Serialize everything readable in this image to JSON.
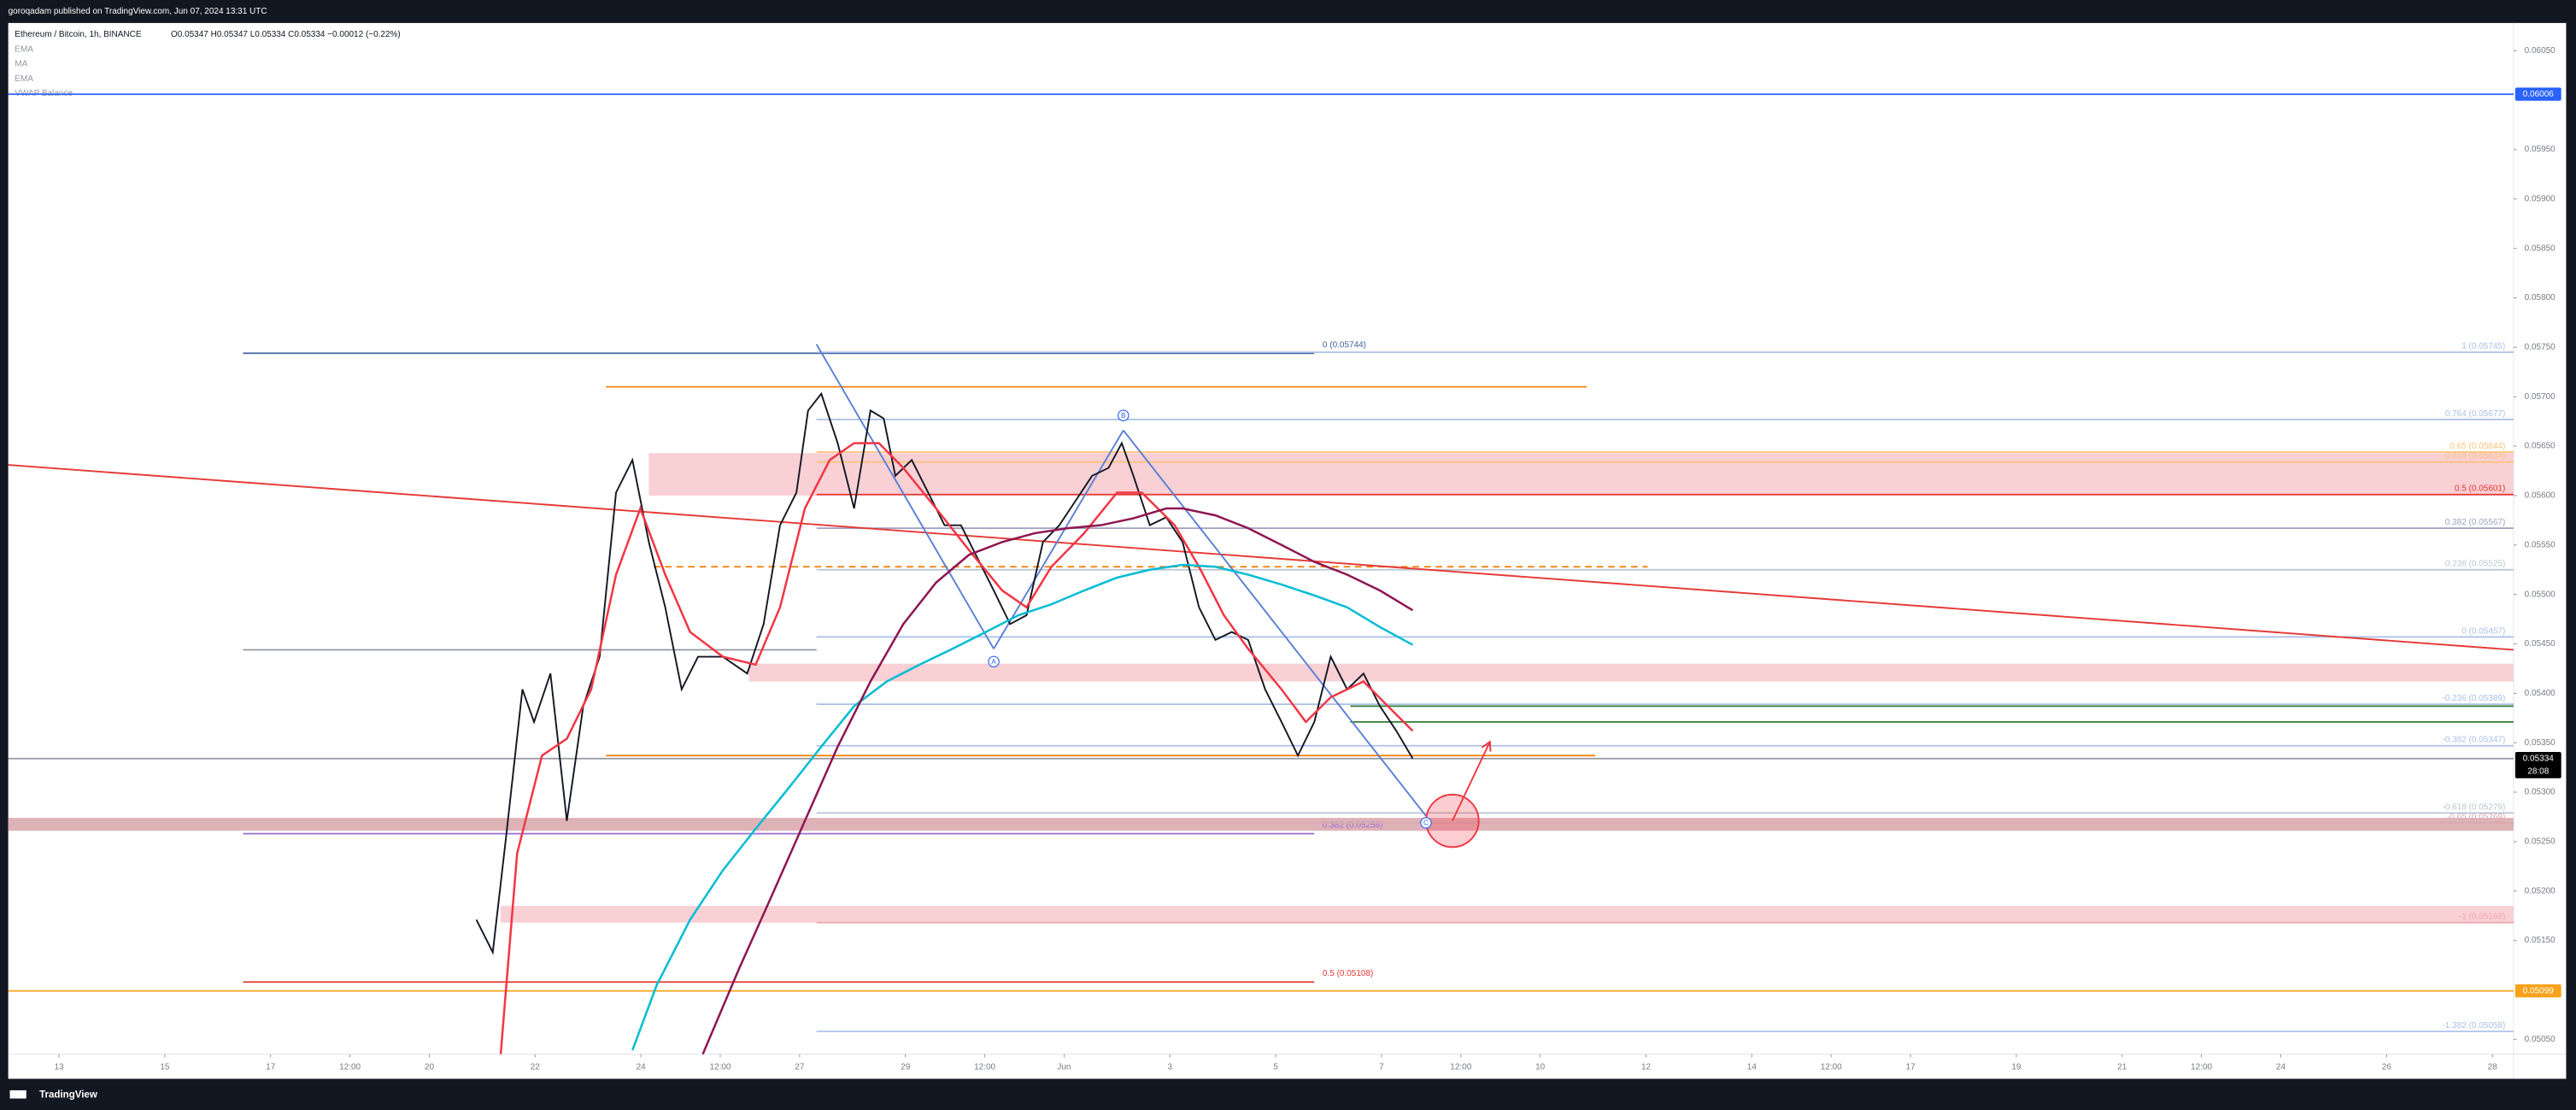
{
  "publisher": "goroqadam published on TradingView.com, Jun 07, 2024 13:31 UTC",
  "footer": "TradingView",
  "chart_data": {
    "type": "line",
    "title": "Ethereum / Bitcoin, 1h, BINANCE",
    "ohlc": "O0.05347 H0.05347 L0.05334 C0.05334 −0.00012 (−0.22%)",
    "indicators": [
      "EMA",
      "MA",
      "EMA",
      "VWAP Balance"
    ],
    "xlim": [
      -0.96,
      46.4
    ],
    "ylim": [
      0.05035,
      0.06078
    ],
    "grid": false,
    "xticks": [
      {
        "value": 0,
        "label": "13"
      },
      {
        "value": 2,
        "label": "15"
      },
      {
        "value": 4,
        "label": "17"
      },
      {
        "value": 5.5,
        "label": "12:00"
      },
      {
        "value": 7,
        "label": "20"
      },
      {
        "value": 9,
        "label": "22"
      },
      {
        "value": 11,
        "label": "24"
      },
      {
        "value": 12.5,
        "label": "12:00"
      },
      {
        "value": 14,
        "label": "27"
      },
      {
        "value": 16,
        "label": "29"
      },
      {
        "value": 17.5,
        "label": "12:00"
      },
      {
        "value": 19,
        "label": "Jun"
      },
      {
        "value": 21,
        "label": "3"
      },
      {
        "value": 23,
        "label": "5"
      },
      {
        "value": 25,
        "label": "7"
      },
      {
        "value": 26.5,
        "label": "12:00"
      },
      {
        "value": 28,
        "label": "10"
      },
      {
        "value": 30,
        "label": "12"
      },
      {
        "value": 32,
        "label": "14"
      },
      {
        "value": 33.5,
        "label": "12:00"
      },
      {
        "value": 35,
        "label": "17"
      },
      {
        "value": 37,
        "label": "19"
      },
      {
        "value": 39,
        "label": "21"
      },
      {
        "value": 40.5,
        "label": "12:00"
      },
      {
        "value": 42,
        "label": "24"
      },
      {
        "value": 44,
        "label": "26"
      },
      {
        "value": 46,
        "label": "28"
      }
    ],
    "yticks": [
      {
        "value": 0.0605,
        "label": "0.06050"
      },
      {
        "value": 0.0595,
        "label": "0.05950"
      },
      {
        "value": 0.059,
        "label": "0.05900"
      },
      {
        "value": 0.0585,
        "label": "0.05850"
      },
      {
        "value": 0.058,
        "label": "0.05800"
      },
      {
        "value": 0.0575,
        "label": "0.05750"
      },
      {
        "value": 0.057,
        "label": "0.05700"
      },
      {
        "value": 0.0565,
        "label": "0.05650"
      },
      {
        "value": 0.056,
        "label": "0.05600"
      },
      {
        "value": 0.0555,
        "label": "0.05550"
      },
      {
        "value": 0.055,
        "label": "0.05500"
      },
      {
        "value": 0.0545,
        "label": "0.05450"
      },
      {
        "value": 0.054,
        "label": "0.05400"
      },
      {
        "value": 0.0535,
        "label": "0.05350"
      },
      {
        "value": 0.053,
        "label": "0.05300"
      },
      {
        "value": 0.0525,
        "label": "0.05250"
      },
      {
        "value": 0.052,
        "label": "0.05200"
      },
      {
        "value": 0.0515,
        "label": "0.05150"
      },
      {
        "value": 0.0505,
        "label": "0.05050"
      }
    ],
    "series": [
      {
        "color": "#131722",
        "x": [
          7.89,
          8.2,
          8.45,
          8.76,
          8.98,
          9.29,
          9.6,
          9.91,
          10.22,
          10.53,
          10.84,
          11.15,
          11.46,
          11.77,
          12.08,
          12.55,
          13.01,
          13.32,
          13.63,
          13.94,
          14.16,
          14.41,
          14.72,
          15.03,
          15.34,
          15.59,
          15.81,
          16.12,
          16.43,
          16.74,
          17.05,
          17.36,
          17.67,
          17.98,
          18.29,
          18.6,
          18.91,
          19.22,
          19.53,
          19.84,
          20.09,
          20.31,
          20.62,
          20.93,
          21.24,
          21.55,
          21.86,
          22.17,
          22.48,
          22.8,
          23.11,
          23.42,
          23.73,
          24.04,
          24.35,
          24.66,
          24.97,
          25.28,
          25.59
        ],
        "values": [
          0.05171,
          0.05138,
          0.05254,
          0.05404,
          0.05371,
          0.0542,
          0.05271,
          0.05387,
          0.05437,
          0.05603,
          0.05636,
          0.05553,
          0.05487,
          0.05404,
          0.05437,
          0.05437,
          0.0542,
          0.0547,
          0.0557,
          0.05603,
          0.05686,
          0.05703,
          0.05653,
          0.05587,
          0.05686,
          0.05678,
          0.0562,
          0.05636,
          0.05603,
          0.0557,
          0.0557,
          0.05537,
          0.05504,
          0.0547,
          0.05479,
          0.05553,
          0.0557,
          0.05595,
          0.0562,
          0.05628,
          0.05653,
          0.0562,
          0.0557,
          0.05578,
          0.05553,
          0.05487,
          0.05454,
          0.05462,
          0.05454,
          0.05404,
          0.05371,
          0.05337,
          0.05371,
          0.05437,
          0.05404,
          0.0542,
          0.05387,
          0.05362,
          0.05334
        ]
      },
      {
        "color": "#f23645",
        "x": [
          8.35,
          8.66,
          9.13,
          9.6,
          10.06,
          10.53,
          10.99,
          11.46,
          11.93,
          12.55,
          13.17,
          13.63,
          14.1,
          14.57,
          15.03,
          15.5,
          15.96,
          16.58,
          17.2,
          17.83,
          18.29,
          18.76,
          19.38,
          20.0,
          20.47,
          21.09,
          21.55,
          22.02,
          22.48,
          23.11,
          23.57,
          24.04,
          24.66,
          25.12,
          25.59
        ],
        "values": [
          0.05035,
          0.05238,
          0.05337,
          0.05354,
          0.05404,
          0.0552,
          0.05587,
          0.0552,
          0.05462,
          0.05437,
          0.05429,
          0.05487,
          0.05587,
          0.05636,
          0.05653,
          0.05653,
          0.05628,
          0.05587,
          0.05545,
          0.05504,
          0.05487,
          0.05528,
          0.05562,
          0.05603,
          0.05603,
          0.0557,
          0.05528,
          0.05479,
          0.05445,
          0.05404,
          0.05371,
          0.05396,
          0.05412,
          0.05387,
          0.05362
        ]
      },
      {
        "color": "#00bcd4",
        "x": [
          10.84,
          11.3,
          11.93,
          12.55,
          13.17,
          13.79,
          14.41,
          15.03,
          15.65,
          16.27,
          16.89,
          17.52,
          18.14,
          18.76,
          19.38,
          20.0,
          20.62,
          21.24,
          21.86,
          22.48,
          23.11,
          23.73,
          24.35,
          24.97,
          25.59
        ],
        "values": [
          0.05039,
          0.05105,
          0.05171,
          0.05221,
          0.05263,
          0.05304,
          0.05346,
          0.05387,
          0.05412,
          0.05429,
          0.05445,
          0.05462,
          0.05479,
          0.0549,
          0.05504,
          0.05517,
          0.05525,
          0.0553,
          0.05528,
          0.0552,
          0.0551,
          0.05499,
          0.05487,
          0.05467,
          0.05449
        ]
      },
      {
        "color": "#8e1651",
        "x": [
          12.17,
          12.86,
          13.48,
          14.1,
          14.72,
          15.34,
          15.96,
          16.58,
          17.2,
          17.83,
          18.45,
          19.07,
          19.69,
          20.31,
          20.93,
          21.24,
          21.86,
          22.48,
          23.11,
          23.73,
          24.35,
          24.97,
          25.59
        ],
        "values": [
          0.05035,
          0.05122,
          0.05196,
          0.05271,
          0.05346,
          0.05412,
          0.0547,
          0.05512,
          0.0554,
          0.05553,
          0.05562,
          0.05567,
          0.0557,
          0.05577,
          0.05587,
          0.05587,
          0.0558,
          0.05567,
          0.0555,
          0.05533,
          0.0552,
          0.05504,
          0.05484
        ]
      }
    ],
    "zones": [
      {
        "y0": 0.05643,
        "y1": 0.056,
        "x0": 11.15,
        "color": "#f8c8cc"
      },
      {
        "y0": 0.0543,
        "y1": 0.05412,
        "x0": 13.04,
        "color": "#f8c8cc"
      },
      {
        "y0": 0.05274,
        "y1": 0.05261,
        "color": "#d9a4ab"
      },
      {
        "y0": 0.05185,
        "y1": 0.05168,
        "x0": 8.35,
        "color": "#f8c8cc"
      }
    ],
    "hlines": [
      {
        "y": 0.06006,
        "color": "#2962ff"
      },
      {
        "y": 0.05099,
        "color": "#f7a21b"
      },
      {
        "y": 0.05334,
        "color": "#9598a1"
      },
      {
        "y": 0.05744,
        "x0": 3.48,
        "x1": 23.73,
        "color": "#3f5f9f",
        "label": "0 (0.05744)",
        "side": "left"
      },
      {
        "y": 0.05444,
        "x0": 3.48,
        "x1": 14.32,
        "color": "#9598a1"
      },
      {
        "y": 0.05258,
        "x0": 3.48,
        "x1": 23.73,
        "color": "#9c6fd0",
        "label": "0.382 (0.05258)",
        "side": "left"
      },
      {
        "y": 0.05108,
        "x0": 3.48,
        "x1": 23.73,
        "color": "#e53935",
        "label": "0.5 (0.05108)",
        "side": "left"
      },
      {
        "y": 0.05745,
        "x0": 14.32,
        "color": "#a9bfe8",
        "label": "1 (0.05745)",
        "side": "right"
      },
      {
        "y": 0.05677,
        "x0": 14.32,
        "color": "#a9bfe8",
        "label": "0.764 (0.05677)",
        "side": "right"
      },
      {
        "y": 0.05644,
        "x0": 14.32,
        "color": "#f9c27a",
        "label": "0.65 (0.05644)",
        "side": "right"
      },
      {
        "y": 0.05634,
        "x0": 14.32,
        "color": "#f9c27a",
        "label": "0.618 (0.05634)",
        "side": "right"
      },
      {
        "y": 0.05601,
        "x0": 14.32,
        "color": "#e53935",
        "label": "0.5 (0.05601)",
        "side": "right"
      },
      {
        "y": 0.05567,
        "x0": 14.32,
        "color": "#a0a0c0",
        "label": "0.382 (0.05567)",
        "side": "right"
      },
      {
        "y": 0.05525,
        "x0": 14.32,
        "color": "#b9c6d0",
        "label": "0.236 (0.05525)",
        "side": "right"
      },
      {
        "y": 0.05457,
        "x0": 14.32,
        "color": "#a9bfe8",
        "label": "0 (0.05457)",
        "side": "right"
      },
      {
        "y": 0.05389,
        "x0": 14.32,
        "color": "#a9bfe8",
        "label": "-0.236 (0.05389)",
        "side": "right"
      },
      {
        "y": 0.05347,
        "x0": 14.32,
        "color": "#a9bfe8",
        "label": "-0.382 (0.05347)",
        "side": "right"
      },
      {
        "y": 0.05279,
        "x0": 14.32,
        "color": "#b9c6d0",
        "label": "-0.618 (0.05279)",
        "side": "right"
      },
      {
        "y": 0.05269,
        "x0": 14.32,
        "color": "#d8aab0",
        "label": "-0.65 (0.05269)",
        "side": "right"
      },
      {
        "y": 0.05168,
        "x0": 14.32,
        "color": "#f0a6ad",
        "label": "-1 (0.05168)",
        "side": "right"
      },
      {
        "y": 0.05058,
        "x0": 14.32,
        "color": "#a9bfe8",
        "label": "-1.382 (0.05058)",
        "side": "right"
      },
      {
        "y": 0.0571,
        "x0": 10.34,
        "x1": 28.88,
        "color": "#f57c00"
      },
      {
        "y": 0.05337,
        "x0": 10.34,
        "x1": 29.04,
        "color": "#f57c00"
      },
      {
        "y": 0.05528,
        "x0": 11.24,
        "x1": 30.03,
        "color": "#f57c00",
        "dash": true
      },
      {
        "y": 0.05387,
        "x0": 24.41,
        "color": "#2e7d32"
      },
      {
        "y": 0.05371,
        "x0": 24.41,
        "color": "#2e7d32"
      }
    ],
    "segments": [
      {
        "x": [
          -0.96,
          46.4
        ],
        "y": [
          0.05631,
          0.05444
        ],
        "color": "#e53935"
      },
      {
        "x": [
          14.32,
          17.67
        ],
        "y": [
          0.05753,
          0.05445
        ],
        "color": "#5b7fd6"
      },
      {
        "x": [
          17.67,
          20.12
        ],
        "y": [
          0.05445,
          0.05666
        ],
        "color": "#5b7fd6"
      },
      {
        "x": [
          20.12,
          25.84
        ],
        "y": [
          0.05666,
          0.05276
        ],
        "color": "#5b7fd6"
      },
      {
        "x": [
          26.34,
          27.05
        ],
        "y": [
          0.05271,
          0.05351
        ],
        "color": "#f23645",
        "arrow": true
      }
    ],
    "points": [
      {
        "x": 17.67,
        "y": 0.05432,
        "label": "A"
      },
      {
        "x": 20.12,
        "y": 0.05681,
        "label": "B"
      },
      {
        "x": 25.84,
        "y": 0.05269,
        "label": "C"
      }
    ],
    "circle": {
      "x": 26.34,
      "y": 0.05271,
      "color": "#f23645"
    },
    "price_labels": [
      {
        "value": 0.06006,
        "label": "0.06006",
        "color": "#2962ff"
      },
      {
        "value": 0.05334,
        "label": "0.05334",
        "timer": "28:08",
        "color": "#000000"
      },
      {
        "value": 0.05099,
        "label": "0.05099",
        "color": "#f7a21b"
      }
    ]
  }
}
